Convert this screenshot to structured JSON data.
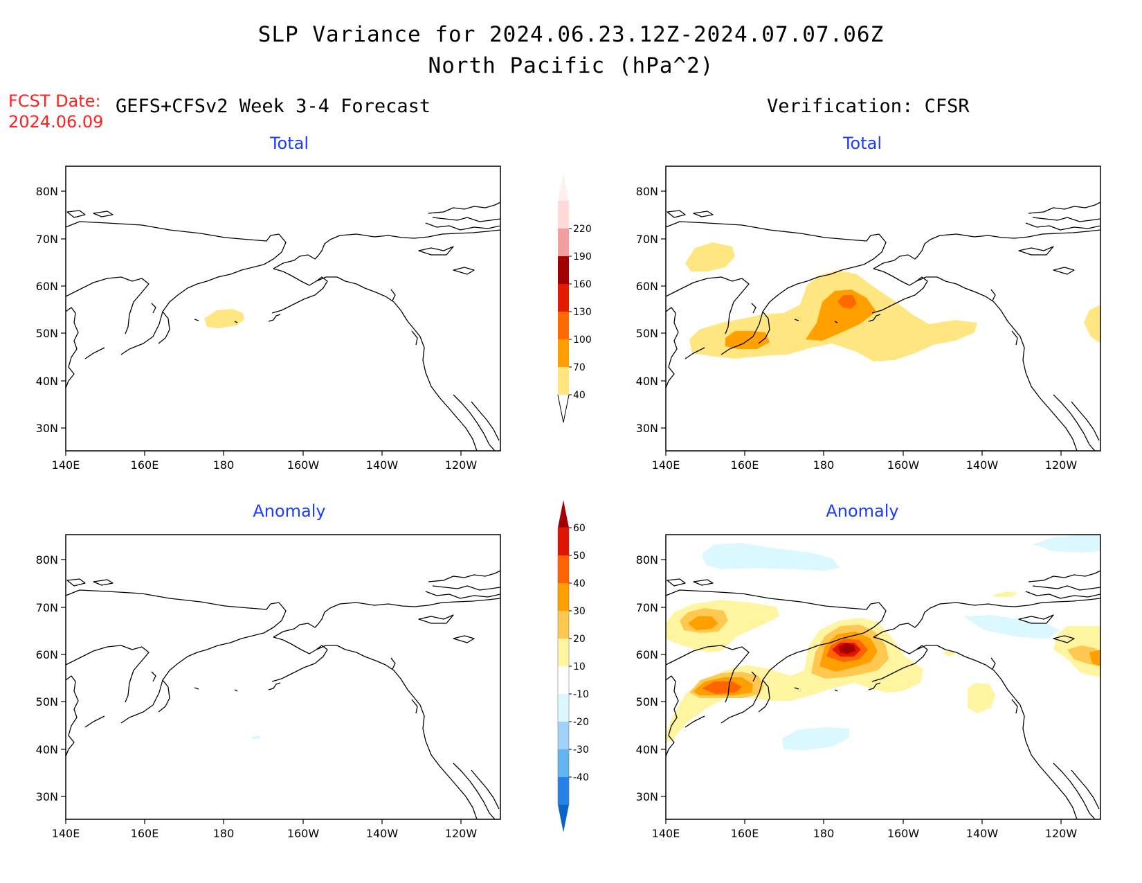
{
  "title_line1": "SLP Variance for 2024.06.23.12Z-2024.07.07.06Z",
  "title_line2": "North Pacific (hPa^2)",
  "fcst_label": "FCST Date:",
  "fcst_date": "2024.06.09",
  "left_column_heading": "GEFS+CFSv2 Week 3-4 Forecast",
  "right_column_heading": "Verification: CFSR",
  "panels": {
    "fcst_total": {
      "title": "Total"
    },
    "verif_total": {
      "title": "Total"
    },
    "fcst_anomaly": {
      "title": "Anomaly"
    },
    "verif_anomaly": {
      "title": "Anomaly"
    }
  },
  "map_axes": {
    "lon_labels": [
      "140E",
      "160E",
      "180",
      "160W",
      "140W",
      "120W"
    ],
    "lat_labels": [
      "80N",
      "70N",
      "60N",
      "50N",
      "40N",
      "30N"
    ],
    "lon_range": "140E-110W",
    "lat_range": "25N-85N"
  },
  "total_colorbar": {
    "labels": [
      "40",
      "70",
      "100",
      "130",
      "160",
      "190",
      "220"
    ],
    "colors": [
      "#ffe680",
      "#ffa000",
      "#ff6a00",
      "#e01b00",
      "#a00000",
      "#f0a0a0",
      "#ffd8d8",
      "#fff0f0"
    ]
  },
  "anomaly_colorbar": {
    "labels": [
      "-40",
      "-30",
      "-20",
      "-10",
      "10",
      "20",
      "30",
      "40",
      "50",
      "60"
    ],
    "colors": [
      "#0a64c8",
      "#2882e6",
      "#64b4f0",
      "#a0d2fa",
      "#dcf8ff",
      "#ffffff",
      "#fff5a0",
      "#ffc850",
      "#ffa000",
      "#ff6400",
      "#e11400",
      "#a50000"
    ]
  }
}
